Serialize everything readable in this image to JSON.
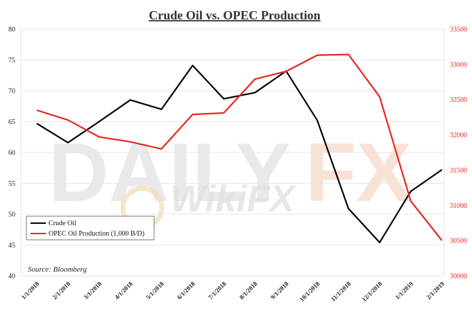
{
  "chart_data": {
    "type": "line",
    "title": "Crude Oil vs. OPEC Production",
    "categories": [
      "1/1/2018",
      "2/1/2018",
      "3/1/2018",
      "4/1/2018",
      "5/1/2018",
      "6/1/2018",
      "7/1/2018",
      "8/1/2018",
      "9/1/2018",
      "10/1/2018",
      "11/1/2018",
      "12/1/2018",
      "1/1/2019",
      "2/1/2019"
    ],
    "series": [
      {
        "name": "Crude Oil",
        "axis": "left",
        "color": "#000000",
        "values": [
          64.7,
          61.6,
          65.0,
          68.5,
          67.0,
          74.1,
          68.7,
          69.7,
          73.2,
          65.2,
          50.9,
          45.4,
          53.7,
          57.2
        ]
      },
      {
        "name": "OPEC Oil Production (1,000 B/D)",
        "axis": "right",
        "color": "#e8251e",
        "values": [
          32350,
          32210,
          31970,
          31900,
          31800,
          32290,
          32310,
          32790,
          32900,
          33130,
          33140,
          32540,
          31060,
          30500
        ]
      }
    ],
    "ylim_left": [
      40,
      80
    ],
    "yticks_left": [
      "40",
      "45",
      "50",
      "55",
      "60",
      "65",
      "70",
      "75",
      "80"
    ],
    "ylim_right": [
      30000,
      33500
    ],
    "yticks_right": [
      "30000",
      "30500",
      "31000",
      "31500",
      "32000",
      "32500",
      "33000",
      "33500"
    ],
    "grid": "horizontal",
    "legend_position": "lower-left",
    "source": "Source: Bloomberg",
    "watermark": {
      "brand": "DAILYFX",
      "secondary": "WikiFX"
    }
  }
}
